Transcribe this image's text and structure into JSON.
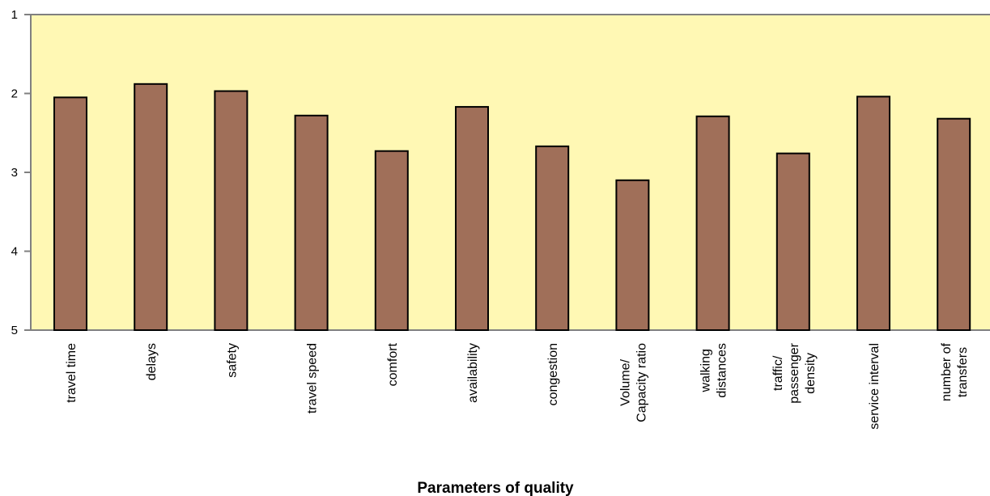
{
  "chart_data": {
    "type": "bar",
    "title": "",
    "xlabel": "Parameters of quality",
    "ylabel": "",
    "ylim": [
      5,
      1
    ],
    "y_axis_inverted": true,
    "yticks": [
      "1",
      "2",
      "3",
      "4",
      "5"
    ],
    "grid": false,
    "categories": [
      [
        "travel time"
      ],
      [
        "delays"
      ],
      [
        "safety"
      ],
      [
        "travel speed"
      ],
      [
        "comfort"
      ],
      [
        "availability"
      ],
      [
        "congestion"
      ],
      [
        "Volume/",
        "Capacity ratio"
      ],
      [
        "walking",
        "distances"
      ],
      [
        "traffic/",
        "passenger",
        "density"
      ],
      [
        "service interval"
      ],
      [
        "number of",
        "transfers"
      ]
    ],
    "values": [
      2.05,
      1.88,
      1.97,
      2.28,
      2.73,
      2.17,
      2.67,
      3.1,
      2.29,
      2.76,
      2.04,
      2.32
    ],
    "colors": {
      "plot_background": "#fff8b4",
      "bar_fill": "#a06f59",
      "bar_stroke": "#000000",
      "axis": "#808080"
    }
  }
}
